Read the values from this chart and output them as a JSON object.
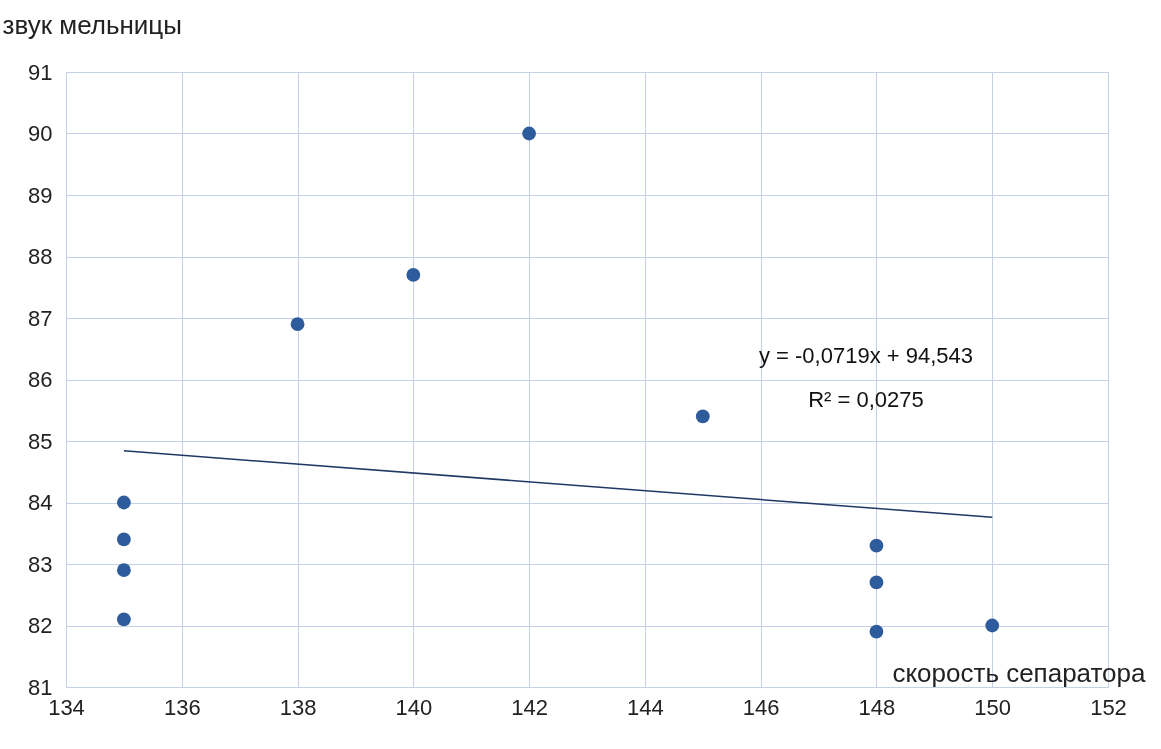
{
  "chart_data": {
    "type": "scatter",
    "xlabel": "скорость сепаратора",
    "ylabel": "звук мельницы",
    "series": [
      {
        "color": "#2e5b9c",
        "marker": "circle",
        "x": [
          135,
          135,
          135,
          135,
          138,
          140,
          142,
          145,
          148,
          148,
          148,
          150
        ],
        "values": [
          84.0,
          83.4,
          82.9,
          82.1,
          86.9,
          87.7,
          90.0,
          85.4,
          83.3,
          82.7,
          81.9,
          82.0
        ]
      },
      {
        "type": "line",
        "marker": "none",
        "color": "#1f3864",
        "x": [
          135,
          150
        ],
        "values": [
          84.84,
          83.76
        ]
      }
    ],
    "annotations": [
      "y = -0,0719x + 94,543",
      "R² = 0,0275"
    ],
    "xlim": [
      134,
      152
    ],
    "xticks": [
      134,
      136,
      138,
      140,
      142,
      144,
      146,
      148,
      150,
      152
    ],
    "ylim": [
      81,
      91
    ],
    "yticks": [
      81,
      82,
      83,
      84,
      85,
      86,
      87,
      88,
      89,
      90,
      91
    ],
    "grid": true,
    "line_style": "solid"
  }
}
